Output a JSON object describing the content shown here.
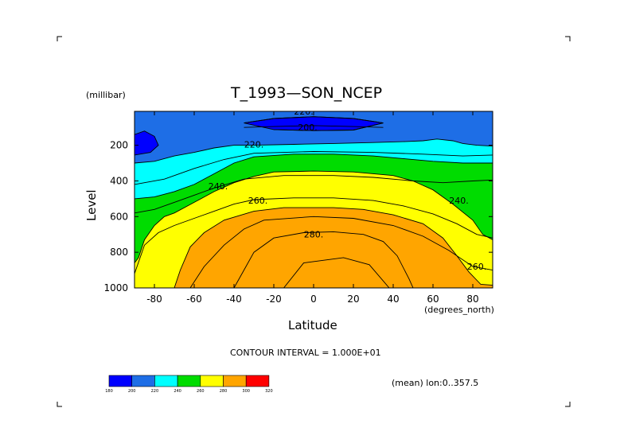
{
  "chart_data": {
    "type": "contour",
    "title": "T_1993—SON_NCEP",
    "units_label": "(millibar)",
    "xlabel": "Latitude",
    "ylabel": "Level",
    "x_units": "(degrees_north)",
    "x_ticks": [
      "-80",
      "-60",
      "-40",
      "-20",
      "0",
      "20",
      "40",
      "60",
      "80"
    ],
    "x_tick_values": [
      -80,
      -60,
      -40,
      -20,
      0,
      20,
      40,
      60,
      80
    ],
    "y_ticks": [
      "200",
      "400",
      "600",
      "800",
      "1000"
    ],
    "y_tick_values": [
      200,
      400,
      600,
      800,
      1000
    ],
    "xlim": [
      -90,
      90
    ],
    "ylim": [
      10,
      1000
    ],
    "y_inverted": true,
    "contour_interval_text": "CONTOUR INTERVAL = 1.000E+01",
    "subtitle": "(mean) lon:0..357.5",
    "levels": [
      180,
      200,
      220,
      240,
      260,
      280,
      300,
      320
    ],
    "level_labels": [
      "180",
      "200",
      "220",
      "240",
      "260",
      "280",
      "300",
      "320"
    ],
    "fill_colors": [
      "#0000ff",
      "#1e6ee6",
      "#00ffff",
      "#00dc00",
      "#ffff00",
      "#ffa500",
      "#ff0000"
    ],
    "contour_labels": [
      {
        "text": "220.",
        "x": -5,
        "y": 10
      },
      {
        "text": "200.",
        "x": -3,
        "y": 100
      },
      {
        "text": "220.",
        "x": -30,
        "y": 195
      },
      {
        "text": "240.",
        "x": -48,
        "y": 430
      },
      {
        "text": "260.",
        "x": -28,
        "y": 510
      },
      {
        "text": "280.",
        "x": 0,
        "y": 700
      },
      {
        "text": "240.",
        "x": 73,
        "y": 510
      },
      {
        "text": "260.",
        "x": 82,
        "y": 880
      }
    ],
    "boundaries": {
      "b200_left": [
        [
          -90,
          140
        ],
        [
          -85,
          120
        ],
        [
          -80,
          150
        ],
        [
          -78,
          200
        ],
        [
          -82,
          240
        ],
        [
          -90,
          255
        ]
      ],
      "b200_mid": [
        [
          -35,
          75
        ],
        [
          -20,
          50
        ],
        [
          0,
          40
        ],
        [
          20,
          50
        ],
        [
          35,
          75
        ],
        [
          20,
          115
        ],
        [
          0,
          118
        ],
        [
          -20,
          112
        ]
      ],
      "b220": [
        [
          -90,
          300
        ],
        [
          -80,
          290
        ],
        [
          -70,
          260
        ],
        [
          -60,
          240
        ],
        [
          -50,
          215
        ],
        [
          -40,
          200
        ],
        [
          -30,
          200
        ],
        [
          -10,
          195
        ],
        [
          10,
          190
        ],
        [
          30,
          185
        ],
        [
          45,
          180
        ],
        [
          55,
          175
        ],
        [
          62,
          165
        ],
        [
          70,
          175
        ],
        [
          75,
          190
        ],
        [
          82,
          200
        ],
        [
          90,
          205
        ]
      ],
      "b240": [
        [
          -90,
          500
        ],
        [
          -80,
          490
        ],
        [
          -70,
          460
        ],
        [
          -60,
          420
        ],
        [
          -50,
          360
        ],
        [
          -40,
          300
        ],
        [
          -30,
          265
        ],
        [
          -10,
          250
        ],
        [
          10,
          250
        ],
        [
          30,
          260
        ],
        [
          45,
          275
        ],
        [
          60,
          290
        ],
        [
          75,
          300
        ],
        [
          90,
          300
        ]
      ],
      "b260": [
        [
          -90,
          860
        ],
        [
          -88,
          830
        ],
        [
          -85,
          730
        ],
        [
          -80,
          650
        ],
        [
          -75,
          600
        ],
        [
          -70,
          580
        ],
        [
          -60,
          520
        ],
        [
          -50,
          460
        ],
        [
          -40,
          410
        ],
        [
          -30,
          375
        ],
        [
          -20,
          350
        ],
        [
          0,
          345
        ],
        [
          20,
          350
        ],
        [
          40,
          370
        ],
        [
          50,
          400
        ],
        [
          60,
          450
        ],
        [
          70,
          530
        ],
        [
          80,
          620
        ],
        [
          85,
          700
        ],
        [
          90,
          730
        ]
      ],
      "b280": [
        [
          -90,
          1000
        ],
        [
          -70,
          1000
        ],
        [
          -67,
          900
        ],
        [
          -62,
          770
        ],
        [
          -55,
          690
        ],
        [
          -45,
          620
        ],
        [
          -30,
          570
        ],
        [
          -15,
          550
        ],
        [
          10,
          550
        ],
        [
          25,
          560
        ],
        [
          40,
          590
        ],
        [
          55,
          640
        ],
        [
          65,
          720
        ],
        [
          72,
          820
        ],
        [
          78,
          910
        ],
        [
          84,
          980
        ],
        [
          90,
          985
        ]
      ],
      "b290": [
        [
          -40,
          1000
        ],
        [
          -35,
          900
        ],
        [
          -30,
          800
        ],
        [
          -20,
          720
        ],
        [
          -5,
          690
        ],
        [
          10,
          685
        ],
        [
          25,
          700
        ],
        [
          35,
          740
        ],
        [
          42,
          820
        ],
        [
          48,
          950
        ],
        [
          50,
          1000
        ]
      ]
    },
    "line_contours": [
      [
        [
          -90,
          920
        ],
        [
          -85,
          760
        ],
        [
          -78,
          690
        ],
        [
          -70,
          650
        ],
        [
          -60,
          610
        ],
        [
          -50,
          570
        ],
        [
          -40,
          530
        ],
        [
          -30,
          505
        ],
        [
          -10,
          495
        ],
        [
          10,
          495
        ],
        [
          30,
          510
        ],
        [
          45,
          540
        ],
        [
          60,
          585
        ],
        [
          72,
          640
        ],
        [
          82,
          700
        ],
        [
          90,
          720
        ]
      ],
      [
        [
          -62,
          1000
        ],
        [
          -55,
          880
        ],
        [
          -45,
          760
        ],
        [
          -35,
          670
        ],
        [
          -25,
          620
        ],
        [
          0,
          600
        ],
        [
          20,
          610
        ],
        [
          40,
          650
        ],
        [
          55,
          710
        ],
        [
          68,
          790
        ],
        [
          80,
          880
        ],
        [
          90,
          900
        ]
      ],
      [
        [
          -15,
          1000
        ],
        [
          -5,
          860
        ],
        [
          15,
          830
        ],
        [
          28,
          870
        ],
        [
          38,
          1000
        ]
      ],
      [
        [
          -90,
          580
        ],
        [
          -80,
          560
        ],
        [
          -70,
          520
        ],
        [
          -60,
          480
        ],
        [
          -50,
          440
        ],
        [
          -35,
          390
        ],
        [
          -15,
          370
        ],
        [
          10,
          370
        ],
        [
          30,
          380
        ],
        [
          50,
          400
        ],
        [
          65,
          410
        ],
        [
          80,
          400
        ],
        [
          90,
          395
        ]
      ],
      [
        [
          -90,
          420
        ],
        [
          -75,
          390
        ],
        [
          -60,
          330
        ],
        [
          -45,
          280
        ],
        [
          -30,
          245
        ],
        [
          0,
          235
        ],
        [
          30,
          240
        ],
        [
          55,
          250
        ],
        [
          75,
          260
        ],
        [
          90,
          255
        ]
      ],
      [
        [
          -35,
          100
        ],
        [
          -20,
          95
        ],
        [
          0,
          90
        ],
        [
          20,
          95
        ],
        [
          35,
          100
        ]
      ]
    ]
  },
  "legend_title": "",
  "corner_marks": true
}
